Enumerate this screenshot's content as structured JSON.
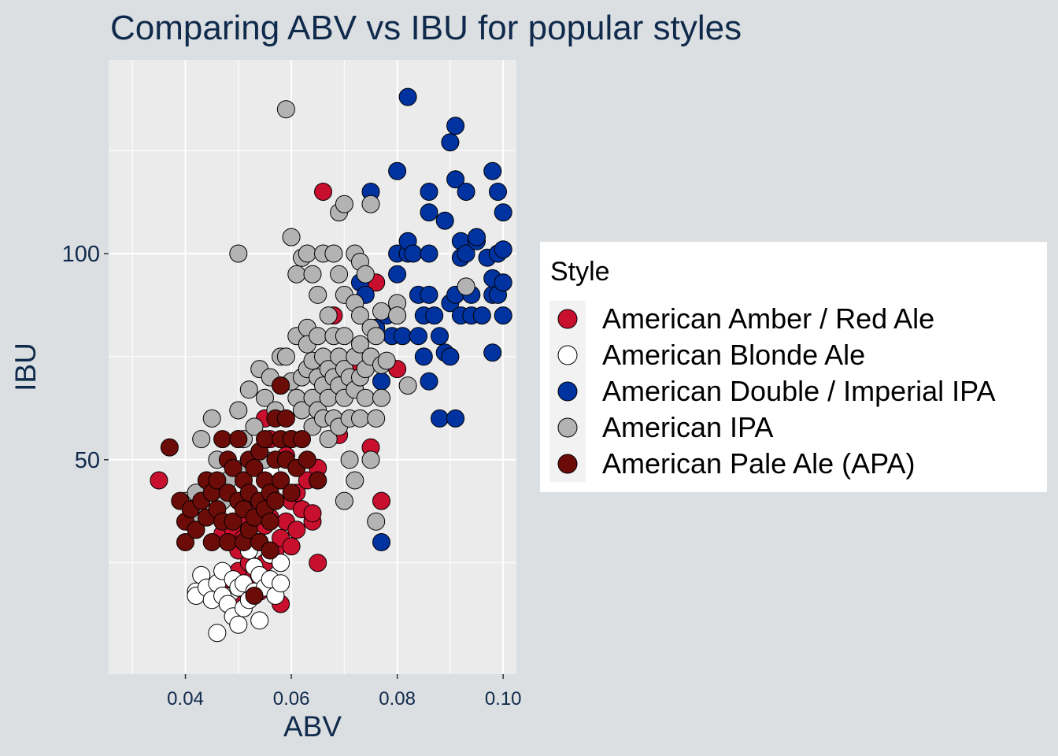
{
  "chart_data": {
    "type": "scatter",
    "title": "Comparing ABV vs IBU for popular styles",
    "xlabel": "ABV",
    "ylabel": "IBU",
    "xlim": [
      0.0255,
      0.1025
    ],
    "ylim": [
      -2,
      147
    ],
    "x_ticks": [
      0.04,
      0.06,
      0.08,
      0.1
    ],
    "x_tick_labels": [
      "0.04",
      "0.06",
      "0.08",
      "0.10"
    ],
    "x_minor_ticks": [
      0.03,
      0.05,
      0.07,
      0.09
    ],
    "y_ticks": [
      50,
      100
    ],
    "y_tick_labels": [
      "50",
      "100"
    ],
    "y_minor_ticks": [
      25,
      75,
      125
    ],
    "grid": true,
    "panel_background": "#ebebeb",
    "point_outline": "#000000",
    "legend": {
      "title": "Style",
      "position": "right"
    },
    "series": [
      {
        "name": "American Amber / Red Ale",
        "color": "#c8102e",
        "points": [
          [
            0.035,
            45
          ],
          [
            0.047,
            32
          ],
          [
            0.048,
            21
          ],
          [
            0.049,
            33
          ],
          [
            0.05,
            28
          ],
          [
            0.05,
            23
          ],
          [
            0.05,
            19
          ],
          [
            0.051,
            15
          ],
          [
            0.051,
            31
          ],
          [
            0.052,
            25
          ],
          [
            0.052,
            35
          ],
          [
            0.053,
            38
          ],
          [
            0.053,
            22
          ],
          [
            0.054,
            30
          ],
          [
            0.054,
            18
          ],
          [
            0.055,
            25
          ],
          [
            0.055,
            60
          ],
          [
            0.055,
            34
          ],
          [
            0.056,
            20
          ],
          [
            0.056,
            36
          ],
          [
            0.056,
            55
          ],
          [
            0.057,
            40
          ],
          [
            0.057,
            28
          ],
          [
            0.057,
            17
          ],
          [
            0.058,
            31
          ],
          [
            0.058,
            15
          ],
          [
            0.058,
            45
          ],
          [
            0.059,
            35
          ],
          [
            0.059,
            51
          ],
          [
            0.06,
            29
          ],
          [
            0.06,
            40
          ],
          [
            0.061,
            33
          ],
          [
            0.061,
            42
          ],
          [
            0.062,
            38
          ],
          [
            0.063,
            45
          ],
          [
            0.064,
            35
          ],
          [
            0.064,
            37
          ],
          [
            0.065,
            25
          ],
          [
            0.065,
            48
          ],
          [
            0.066,
            115
          ],
          [
            0.068,
            85
          ],
          [
            0.069,
            56
          ],
          [
            0.07,
            70
          ],
          [
            0.072,
            72
          ],
          [
            0.075,
            53
          ],
          [
            0.076,
            93
          ],
          [
            0.077,
            40
          ],
          [
            0.08,
            72
          ]
        ]
      },
      {
        "name": "American Blonde Ale",
        "color": "#ffffff",
        "points": [
          [
            0.042,
            18
          ],
          [
            0.042,
            17
          ],
          [
            0.043,
            22
          ],
          [
            0.044,
            19
          ],
          [
            0.045,
            16
          ],
          [
            0.046,
            20
          ],
          [
            0.046,
            8
          ],
          [
            0.047,
            23
          ],
          [
            0.047,
            17
          ],
          [
            0.048,
            15
          ],
          [
            0.049,
            12
          ],
          [
            0.049,
            21
          ],
          [
            0.05,
            10
          ],
          [
            0.05,
            19
          ],
          [
            0.051,
            14
          ],
          [
            0.051,
            20
          ],
          [
            0.052,
            16
          ],
          [
            0.052,
            28
          ],
          [
            0.053,
            24
          ],
          [
            0.053,
            18
          ],
          [
            0.054,
            22
          ],
          [
            0.054,
            11
          ],
          [
            0.055,
            19
          ],
          [
            0.056,
            27
          ],
          [
            0.056,
            21
          ],
          [
            0.056,
            47
          ],
          [
            0.057,
            17
          ],
          [
            0.058,
            25
          ],
          [
            0.058,
            20
          ]
        ]
      },
      {
        "name": "American Double / Imperial IPA",
        "color": "#0033a0",
        "points": [
          [
            0.073,
            93
          ],
          [
            0.074,
            90
          ],
          [
            0.075,
            115
          ],
          [
            0.076,
            82
          ],
          [
            0.077,
            30
          ],
          [
            0.077,
            69
          ],
          [
            0.078,
            85
          ],
          [
            0.079,
            80
          ],
          [
            0.08,
            100
          ],
          [
            0.08,
            120
          ],
          [
            0.08,
            95
          ],
          [
            0.08,
            85
          ],
          [
            0.081,
            80
          ],
          [
            0.082,
            100
          ],
          [
            0.082,
            138
          ],
          [
            0.082,
            103
          ],
          [
            0.083,
            100
          ],
          [
            0.084,
            90
          ],
          [
            0.084,
            80
          ],
          [
            0.085,
            85
          ],
          [
            0.085,
            75
          ],
          [
            0.086,
            115
          ],
          [
            0.086,
            110
          ],
          [
            0.086,
            100
          ],
          [
            0.086,
            90
          ],
          [
            0.086,
            69
          ],
          [
            0.087,
            85
          ],
          [
            0.088,
            80
          ],
          [
            0.088,
            60
          ],
          [
            0.089,
            108
          ],
          [
            0.089,
            76
          ],
          [
            0.09,
            88
          ],
          [
            0.09,
            75
          ],
          [
            0.09,
            127
          ],
          [
            0.091,
            131
          ],
          [
            0.091,
            118
          ],
          [
            0.091,
            60
          ],
          [
            0.091,
            90
          ],
          [
            0.092,
            103
          ],
          [
            0.092,
            99
          ],
          [
            0.092,
            85
          ],
          [
            0.093,
            115
          ],
          [
            0.093,
            100
          ],
          [
            0.094,
            85
          ],
          [
            0.094,
            90
          ],
          [
            0.095,
            103
          ],
          [
            0.095,
            104
          ],
          [
            0.096,
            85
          ],
          [
            0.097,
            99
          ],
          [
            0.098,
            90
          ],
          [
            0.098,
            120
          ],
          [
            0.098,
            94
          ],
          [
            0.098,
            76
          ],
          [
            0.099,
            115
          ],
          [
            0.099,
            100
          ],
          [
            0.099,
            90
          ],
          [
            0.1,
            93
          ],
          [
            0.1,
            101
          ],
          [
            0.1,
            110
          ],
          [
            0.1,
            85
          ]
        ]
      },
      {
        "name": "American IPA",
        "color": "#b3b3b3",
        "points": [
          [
            0.04,
            40
          ],
          [
            0.041,
            38
          ],
          [
            0.042,
            42
          ],
          [
            0.043,
            55
          ],
          [
            0.043,
            36
          ],
          [
            0.044,
            45
          ],
          [
            0.045,
            60
          ],
          [
            0.046,
            50
          ],
          [
            0.047,
            40
          ],
          [
            0.048,
            45
          ],
          [
            0.05,
            55
          ],
          [
            0.05,
            100
          ],
          [
            0.05,
            62
          ],
          [
            0.051,
            55
          ],
          [
            0.051,
            48
          ],
          [
            0.052,
            67
          ],
          [
            0.053,
            58
          ],
          [
            0.054,
            72
          ],
          [
            0.055,
            65
          ],
          [
            0.055,
            50
          ],
          [
            0.056,
            70
          ],
          [
            0.057,
            62
          ],
          [
            0.058,
            75
          ],
          [
            0.058,
            68
          ],
          [
            0.059,
            75
          ],
          [
            0.059,
            135
          ],
          [
            0.06,
            69
          ],
          [
            0.06,
            55
          ],
          [
            0.06,
            104
          ],
          [
            0.061,
            65
          ],
          [
            0.061,
            80
          ],
          [
            0.061,
            95
          ],
          [
            0.062,
            70
          ],
          [
            0.062,
            62
          ],
          [
            0.062,
            99
          ],
          [
            0.063,
            82
          ],
          [
            0.063,
            78
          ],
          [
            0.063,
            72
          ],
          [
            0.063,
            100
          ],
          [
            0.064,
            95
          ],
          [
            0.064,
            74
          ],
          [
            0.064,
            65
          ],
          [
            0.064,
            58
          ],
          [
            0.065,
            90
          ],
          [
            0.065,
            80
          ],
          [
            0.065,
            70
          ],
          [
            0.065,
            62
          ],
          [
            0.065,
            45
          ],
          [
            0.066,
            75
          ],
          [
            0.066,
            68
          ],
          [
            0.066,
            60
          ],
          [
            0.066,
            100
          ],
          [
            0.067,
            85
          ],
          [
            0.067,
            72
          ],
          [
            0.067,
            65
          ],
          [
            0.067,
            55
          ],
          [
            0.068,
            100
          ],
          [
            0.068,
            80
          ],
          [
            0.068,
            70
          ],
          [
            0.068,
            60
          ],
          [
            0.069,
            110
          ],
          [
            0.069,
            95
          ],
          [
            0.069,
            75
          ],
          [
            0.069,
            68
          ],
          [
            0.069,
            58
          ],
          [
            0.07,
            112
          ],
          [
            0.07,
            90
          ],
          [
            0.07,
            80
          ],
          [
            0.07,
            72
          ],
          [
            0.07,
            65
          ],
          [
            0.07,
            40
          ],
          [
            0.071,
            70
          ],
          [
            0.071,
            60
          ],
          [
            0.071,
            50
          ],
          [
            0.072,
            100
          ],
          [
            0.072,
            88
          ],
          [
            0.072,
            75
          ],
          [
            0.072,
            67
          ],
          [
            0.072,
            45
          ],
          [
            0.073,
            98
          ],
          [
            0.073,
            85
          ],
          [
            0.073,
            78
          ],
          [
            0.073,
            70
          ],
          [
            0.073,
            60
          ],
          [
            0.074,
            95
          ],
          [
            0.074,
            72
          ],
          [
            0.074,
            65
          ],
          [
            0.075,
            112
          ],
          [
            0.075,
            82
          ],
          [
            0.075,
            75
          ],
          [
            0.075,
            50
          ],
          [
            0.076,
            80
          ],
          [
            0.076,
            60
          ],
          [
            0.076,
            35
          ],
          [
            0.077,
            86
          ],
          [
            0.077,
            73
          ],
          [
            0.077,
            65
          ],
          [
            0.078,
            74
          ],
          [
            0.08,
            88
          ],
          [
            0.08,
            85
          ],
          [
            0.082,
            68
          ],
          [
            0.093,
            92
          ]
        ]
      },
      {
        "name": "American Pale Ale (APA)",
        "color": "#6b0c08",
        "points": [
          [
            0.037,
            53
          ],
          [
            0.039,
            40
          ],
          [
            0.04,
            35
          ],
          [
            0.04,
            30
          ],
          [
            0.041,
            38
          ],
          [
            0.042,
            33
          ],
          [
            0.043,
            40
          ],
          [
            0.044,
            45
          ],
          [
            0.044,
            36
          ],
          [
            0.045,
            42
          ],
          [
            0.045,
            30
          ],
          [
            0.046,
            38
          ],
          [
            0.046,
            45
          ],
          [
            0.047,
            35
          ],
          [
            0.047,
            55
          ],
          [
            0.048,
            50
          ],
          [
            0.048,
            42
          ],
          [
            0.048,
            30
          ],
          [
            0.049,
            35
          ],
          [
            0.049,
            48
          ],
          [
            0.05,
            40
          ],
          [
            0.05,
            55
          ],
          [
            0.051,
            30
          ],
          [
            0.051,
            45
          ],
          [
            0.051,
            38
          ],
          [
            0.052,
            50
          ],
          [
            0.052,
            42
          ],
          [
            0.052,
            33
          ],
          [
            0.053,
            36
          ],
          [
            0.053,
            48
          ],
          [
            0.053,
            17
          ],
          [
            0.054,
            40
          ],
          [
            0.054,
            52
          ],
          [
            0.054,
            30
          ],
          [
            0.055,
            45
          ],
          [
            0.055,
            38
          ],
          [
            0.055,
            55
          ],
          [
            0.056,
            42
          ],
          [
            0.056,
            35
          ],
          [
            0.056,
            28
          ],
          [
            0.057,
            50
          ],
          [
            0.057,
            40
          ],
          [
            0.057,
            60
          ],
          [
            0.058,
            45
          ],
          [
            0.058,
            55
          ],
          [
            0.058,
            68
          ],
          [
            0.059,
            60
          ],
          [
            0.059,
            50
          ],
          [
            0.06,
            55
          ],
          [
            0.06,
            42
          ],
          [
            0.061,
            48
          ],
          [
            0.062,
            55
          ],
          [
            0.063,
            50
          ],
          [
            0.065,
            45
          ]
        ]
      }
    ]
  }
}
